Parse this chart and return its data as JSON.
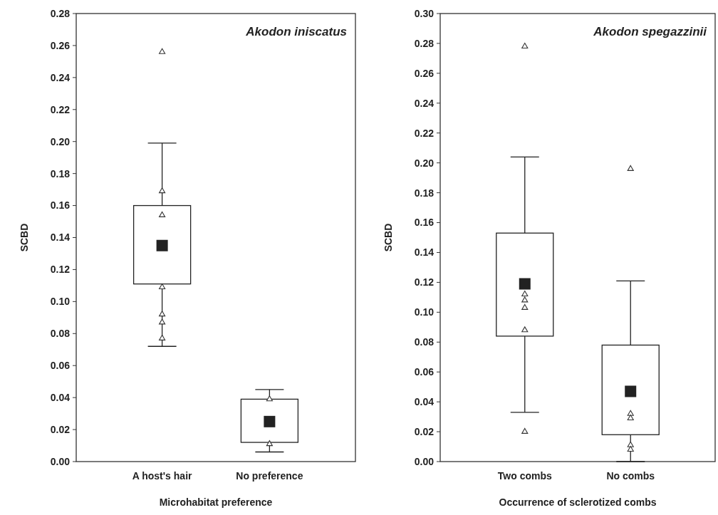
{
  "chart_data": [
    {
      "type": "box",
      "title": "Akodon iniscatus",
      "xlabel": "Microhabitat preference",
      "ylabel": "SCBD",
      "categories": [
        "A host's hair",
        "No preference"
      ],
      "boxes": [
        {
          "low": 0.072,
          "q1": 0.111,
          "q3": 0.16,
          "high": 0.199,
          "mean": 0.135
        },
        {
          "low": 0.006,
          "q1": 0.012,
          "q3": 0.039,
          "high": 0.045,
          "mean": 0.025
        }
      ],
      "series": [
        {
          "type": "scatter",
          "marker": "triangle",
          "color": "#333333",
          "x": [
            "A host's hair",
            "A host's hair",
            "A host's hair",
            "A host's hair",
            "A host's hair",
            "A host's hair",
            "A host's hair",
            "No preference",
            "No preference"
          ],
          "values": [
            0.256,
            0.169,
            0.154,
            0.109,
            0.092,
            0.087,
            0.077,
            0.039,
            0.011
          ]
        }
      ],
      "ylim": [
        0,
        0.28
      ],
      "yticks": [
        {
          "value": 0,
          "label": "0.00"
        },
        {
          "value": 0.02,
          "label": "0.02"
        },
        {
          "value": 0.04,
          "label": "0.04"
        },
        {
          "value": 0.06,
          "label": "0.06"
        },
        {
          "value": 0.08,
          "label": "0.08"
        },
        {
          "value": 0.1,
          "label": "0.10"
        },
        {
          "value": 0.12,
          "label": "0.12"
        },
        {
          "value": 0.14,
          "label": "0.14"
        },
        {
          "value": 0.16,
          "label": "0.16"
        },
        {
          "value": 0.18,
          "label": "0.18"
        },
        {
          "value": 0.2,
          "label": "0.20"
        },
        {
          "value": 0.22,
          "label": "0.22"
        },
        {
          "value": 0.24,
          "label": "0.24"
        },
        {
          "value": 0.26,
          "label": "0.26"
        },
        {
          "value": 0.28,
          "label": "0.28"
        }
      ]
    },
    {
      "type": "box",
      "title": "Akodon spegazzinii",
      "xlabel": "Occurrence of sclerotized combs",
      "ylabel": "SCBD",
      "categories": [
        "Two combs",
        "No combs"
      ],
      "boxes": [
        {
          "low": 0.033,
          "q1": 0.084,
          "q3": 0.153,
          "high": 0.204,
          "mean": 0.119
        },
        {
          "low": 0.0,
          "q1": 0.018,
          "q3": 0.078,
          "high": 0.121,
          "mean": 0.047
        }
      ],
      "series": [
        {
          "type": "scatter",
          "marker": "triangle",
          "color": "#333333",
          "x": [
            "Two combs",
            "Two combs",
            "Two combs",
            "Two combs",
            "Two combs",
            "Two combs",
            "No combs",
            "No combs",
            "No combs",
            "No combs",
            "No combs"
          ],
          "values": [
            0.278,
            0.112,
            0.108,
            0.103,
            0.088,
            0.02,
            0.196,
            0.032,
            0.029,
            0.011,
            0.008
          ]
        }
      ],
      "ylim": [
        0,
        0.3
      ],
      "yticks": [
        {
          "value": 0,
          "label": "0.00"
        },
        {
          "value": 0.02,
          "label": "0.02"
        },
        {
          "value": 0.04,
          "label": "0.04"
        },
        {
          "value": 0.06,
          "label": "0.06"
        },
        {
          "value": 0.08,
          "label": "0.08"
        },
        {
          "value": 0.1,
          "label": "0.10"
        },
        {
          "value": 0.12,
          "label": "0.12"
        },
        {
          "value": 0.14,
          "label": "0.14"
        },
        {
          "value": 0.16,
          "label": "0.16"
        },
        {
          "value": 0.18,
          "label": "0.18"
        },
        {
          "value": 0.2,
          "label": "0.20"
        },
        {
          "value": 0.22,
          "label": "0.22"
        },
        {
          "value": 0.24,
          "label": "0.24"
        },
        {
          "value": 0.26,
          "label": "0.26"
        },
        {
          "value": 0.28,
          "label": "0.28"
        },
        {
          "value": 0.3,
          "label": "0.30"
        }
      ]
    }
  ]
}
